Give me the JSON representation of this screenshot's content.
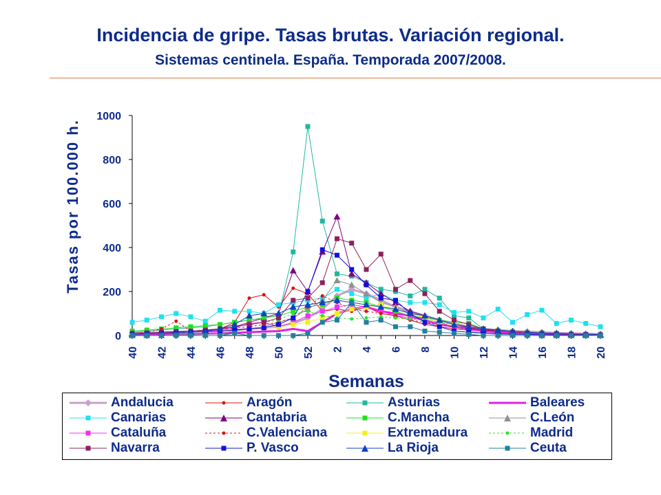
{
  "header": {
    "title": "Incidencia de gripe. Tasas brutas. Variación regional.",
    "subtitle": "Sistemas centinela. España. Temporada 2007/2008."
  },
  "chart_data": {
    "type": "line",
    "xlabel": "Semanas",
    "ylabel": "Tasas por 100.000 h.",
    "ylim": [
      0,
      1000
    ],
    "yticks": [
      0,
      200,
      400,
      600,
      800,
      1000
    ],
    "x": [
      "40",
      "41",
      "42",
      "43",
      "44",
      "45",
      "46",
      "47",
      "48",
      "49",
      "50",
      "51",
      "52",
      "1",
      "2",
      "3",
      "4",
      "5",
      "6",
      "7",
      "8",
      "9",
      "10",
      "11",
      "12",
      "13",
      "14",
      "15",
      "16",
      "17",
      "18",
      "19",
      "20"
    ],
    "xtick_labels": [
      "40",
      "42",
      "44",
      "46",
      "48",
      "50",
      "52",
      "2",
      "4",
      "6",
      "8",
      "10",
      "12",
      "14",
      "16",
      "18",
      "20"
    ],
    "legend_placement": "bottom",
    "series": [
      {
        "name": "Andalucia",
        "color": "#c8a0c8",
        "marker": "diamond",
        "width": 3,
        "dash": "",
        "values": [
          10,
          12,
          14,
          16,
          18,
          20,
          22,
          25,
          30,
          35,
          40,
          55,
          80,
          120,
          180,
          210,
          190,
          160,
          130,
          110,
          90,
          70,
          55,
          40,
          30,
          25,
          20,
          18,
          15,
          12,
          10,
          8,
          6
        ]
      },
      {
        "name": "Aragón",
        "color": "#e01010",
        "marker": "dot",
        "width": 1,
        "dash": "",
        "values": [
          5,
          8,
          10,
          12,
          15,
          20,
          30,
          60,
          170,
          185,
          130,
          215,
          190,
          110,
          120,
          110,
          130,
          100,
          90,
          70,
          50,
          40,
          30,
          25,
          20,
          15,
          12,
          10,
          8,
          6,
          5,
          4,
          3
        ]
      },
      {
        "name": "Asturias",
        "color": "#20b8a0",
        "marker": "square",
        "width": 1,
        "dash": "",
        "values": [
          15,
          20,
          25,
          30,
          35,
          40,
          50,
          60,
          70,
          80,
          90,
          380,
          950,
          520,
          280,
          270,
          240,
          210,
          200,
          180,
          210,
          170,
          90,
          80,
          30,
          25,
          20,
          15,
          12,
          10,
          8,
          6,
          5
        ]
      },
      {
        "name": "Baleares",
        "color": "#e020e0",
        "marker": "none",
        "width": 3,
        "dash": "",
        "values": [
          2,
          3,
          4,
          5,
          6,
          8,
          10,
          12,
          15,
          18,
          20,
          30,
          20,
          60,
          100,
          120,
          130,
          110,
          100,
          90,
          70,
          50,
          40,
          30,
          20,
          15,
          12,
          10,
          8,
          6,
          5,
          4,
          3
        ]
      },
      {
        "name": "Canarias",
        "color": "#20e0f0",
        "marker": "square",
        "width": 1,
        "dash": "",
        "values": [
          60,
          70,
          85,
          100,
          85,
          65,
          115,
          110,
          110,
          100,
          140,
          150,
          160,
          170,
          210,
          190,
          170,
          190,
          160,
          150,
          150,
          140,
          105,
          110,
          80,
          120,
          60,
          95,
          115,
          55,
          70,
          55,
          40
        ]
      },
      {
        "name": "Cantabria",
        "color": "#800080",
        "marker": "triangle",
        "width": 1,
        "dash": "",
        "values": [
          5,
          8,
          10,
          15,
          20,
          25,
          30,
          40,
          60,
          80,
          100,
          295,
          200,
          380,
          540,
          280,
          240,
          190,
          150,
          110,
          90,
          70,
          50,
          35,
          25,
          20,
          15,
          10,
          8,
          6,
          5,
          4,
          3
        ]
      },
      {
        "name": "C.Mancha",
        "color": "#20e020",
        "marker": "square",
        "width": 1,
        "dash": "",
        "values": [
          20,
          25,
          30,
          35,
          40,
          45,
          50,
          60,
          70,
          80,
          90,
          110,
          130,
          140,
          170,
          160,
          150,
          130,
          110,
          90,
          80,
          70,
          60,
          55,
          30,
          25,
          20,
          15,
          12,
          10,
          8,
          6,
          5
        ]
      },
      {
        "name": "C.León",
        "color": "#909090",
        "marker": "triangle",
        "width": 1,
        "dash": "",
        "values": [
          0,
          0,
          0,
          5,
          5,
          5,
          10,
          20,
          30,
          40,
          60,
          80,
          120,
          160,
          250,
          230,
          190,
          150,
          130,
          100,
          80,
          60,
          40,
          20,
          10,
          5,
          5,
          5,
          0,
          0,
          0,
          0,
          0
        ]
      },
      {
        "name": "Cataluña",
        "color": "#f030f0",
        "marker": "square",
        "width": 1,
        "dash": "",
        "values": [
          5,
          8,
          10,
          12,
          15,
          20,
          25,
          35,
          55,
          60,
          40,
          60,
          90,
          110,
          130,
          140,
          130,
          110,
          90,
          80,
          70,
          50,
          40,
          30,
          20,
          15,
          12,
          10,
          8,
          6,
          5,
          4,
          3
        ]
      },
      {
        "name": "C.Valenciana",
        "color": "#e01010",
        "marker": "dot",
        "width": 1,
        "dash": "3,3",
        "values": [
          10,
          15,
          30,
          65,
          20,
          25,
          30,
          35,
          40,
          50,
          60,
          80,
          130,
          180,
          150,
          120,
          110,
          100,
          90,
          70,
          60,
          50,
          40,
          30,
          25,
          20,
          15,
          12,
          10,
          8,
          6,
          5,
          4
        ]
      },
      {
        "name": "Extremadura",
        "color": "#f0f020",
        "marker": "square",
        "width": 1,
        "dash": "",
        "values": [
          5,
          8,
          10,
          12,
          15,
          18,
          20,
          25,
          30,
          35,
          40,
          50,
          60,
          80,
          100,
          120,
          130,
          140,
          120,
          100,
          80,
          60,
          50,
          40,
          30,
          25,
          20,
          15,
          12,
          10,
          8,
          6,
          5
        ]
      },
      {
        "name": "Madrid",
        "color": "#30e030",
        "marker": "dot",
        "width": 1,
        "dash": "3,3",
        "values": [
          10,
          12,
          15,
          18,
          20,
          25,
          30,
          40,
          50,
          60,
          70,
          100,
          110,
          90,
          80,
          75,
          80,
          85,
          80,
          75,
          70,
          60,
          50,
          40,
          30,
          25,
          20,
          15,
          12,
          10,
          8,
          6,
          5
        ]
      },
      {
        "name": "Navarra",
        "color": "#902060",
        "marker": "square",
        "width": 1,
        "dash": "",
        "values": [
          10,
          12,
          15,
          18,
          20,
          25,
          30,
          40,
          50,
          60,
          80,
          160,
          170,
          240,
          440,
          420,
          300,
          370,
          210,
          250,
          190,
          110,
          70,
          50,
          30,
          20,
          15,
          12,
          10,
          8,
          6,
          5,
          4
        ]
      },
      {
        "name": "P. Vasco",
        "color": "#1010e0",
        "marker": "square",
        "width": 1,
        "dash": "",
        "values": [
          5,
          8,
          10,
          12,
          15,
          18,
          20,
          25,
          30,
          35,
          50,
          80,
          200,
          390,
          365,
          300,
          230,
          170,
          160,
          100,
          60,
          40,
          20,
          15,
          10,
          8,
          6,
          5,
          4,
          3,
          2,
          2,
          1
        ]
      },
      {
        "name": "La Rioja",
        "color": "#1040c0",
        "marker": "triangle",
        "width": 1,
        "dash": "",
        "values": [
          5,
          8,
          10,
          12,
          15,
          20,
          30,
          50,
          90,
          100,
          100,
          130,
          140,
          150,
          160,
          150,
          140,
          130,
          120,
          100,
          90,
          70,
          50,
          40,
          30,
          25,
          20,
          15,
          12,
          10,
          8,
          6,
          5
        ]
      },
      {
        "name": "Ceuta",
        "color": "#2080a0",
        "marker": "square",
        "width": 1,
        "dash": "",
        "values": [
          0,
          0,
          0,
          0,
          0,
          0,
          0,
          10,
          0,
          0,
          0,
          0,
          10,
          60,
          70,
          150,
          60,
          70,
          40,
          40,
          20,
          15,
          10,
          5,
          0,
          0,
          0,
          0,
          0,
          0,
          0,
          0,
          0
        ]
      }
    ]
  }
}
